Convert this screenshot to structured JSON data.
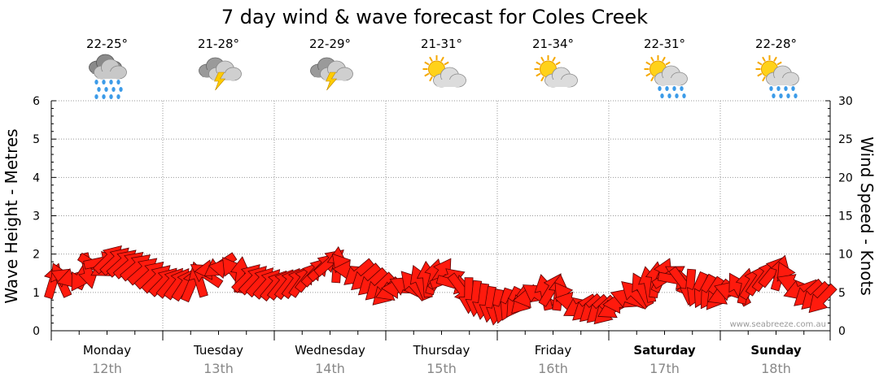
{
  "chart_data": {
    "type": "line",
    "title": "7 day wind & wave forecast for Coles Creek",
    "ylabel": "Wave Height - Metres",
    "y2label": "Wind Speed - Knots",
    "ylim": [
      0,
      6
    ],
    "y2lim": [
      0,
      30
    ],
    "yticks": [
      "0",
      "1",
      "2",
      "3",
      "4",
      "5",
      "6"
    ],
    "y2ticks": [
      "0",
      "5",
      "10",
      "15",
      "20",
      "25",
      "30"
    ],
    "grid": true,
    "days": [
      {
        "name": "Monday",
        "date": "12th",
        "temp": "22-25°",
        "icon": "rain-cloud-icon",
        "bold": false
      },
      {
        "name": "Tuesday",
        "date": "13th",
        "temp": "21-28°",
        "icon": "storm-cloud-icon",
        "bold": false
      },
      {
        "name": "Wednesday",
        "date": "14th",
        "temp": "22-29°",
        "icon": "storm-cloud-icon",
        "bold": false
      },
      {
        "name": "Thursday",
        "date": "15th",
        "temp": "21-31°",
        "icon": "sun-cloud-icon",
        "bold": false
      },
      {
        "name": "Friday",
        "date": "16th",
        "temp": "21-34°",
        "icon": "sun-cloud-icon",
        "bold": false
      },
      {
        "name": "Saturday",
        "date": "17th",
        "temp": "22-31°",
        "icon": "sun-rain-icon",
        "bold": true
      },
      {
        "name": "Sunday",
        "date": "18th",
        "temp": "22-28°",
        "icon": "sun-rain-icon",
        "bold": true
      }
    ],
    "series": [
      {
        "x_days": [
          0.0,
          0.25,
          0.5,
          0.75,
          1.0,
          1.25,
          1.5,
          1.75,
          2.0,
          2.25,
          2.5,
          2.75,
          3.0,
          3.25,
          3.5,
          3.75,
          4.0,
          4.25,
          4.5,
          4.75,
          5.0,
          5.25,
          5.5,
          5.75,
          6.0,
          6.25,
          6.5,
          6.75,
          7.0
        ],
        "wind_knots": [
          6.5,
          7.0,
          9.5,
          8.5,
          6.5,
          6.0,
          8.5,
          7.0,
          6.0,
          6.5,
          9.0,
          7.5,
          5.0,
          6.0,
          7.5,
          4.5,
          3.0,
          4.0,
          5.5,
          3.0,
          2.5,
          5.0,
          7.5,
          5.5,
          4.5,
          6.0,
          8.0,
          5.0,
          3.5
        ],
        "wind_dir_deg": [
          300,
          135,
          315,
          320,
          315,
          300,
          140,
          315,
          310,
          305,
          320,
          140,
          135,
          230,
          305,
          95,
          100,
          135,
          310,
          140,
          135,
          230,
          300,
          110,
          130,
          300,
          310,
          140,
          130
        ]
      }
    ],
    "watermark": "www.seabreeze.com.au"
  }
}
